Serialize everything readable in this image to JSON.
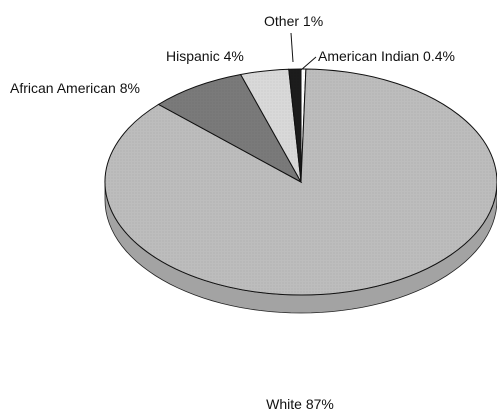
{
  "chart_data": {
    "type": "pie",
    "title": "",
    "categories": [
      "White",
      "African American",
      "Hispanic",
      "Other",
      "American Indian"
    ],
    "values": [
      87,
      8,
      4,
      1,
      0.4
    ],
    "labels": [
      "White 87%",
      "African American 8%",
      "Hispanic 4%",
      "Other 1%",
      "American Indian 0.4%"
    ],
    "colors": [
      "#bdbdbd",
      "#7a7a7a",
      "#d9d9d9",
      "#1c1c1c",
      "#ffffff"
    ],
    "style": "3d-tilted",
    "legend": "none"
  }
}
